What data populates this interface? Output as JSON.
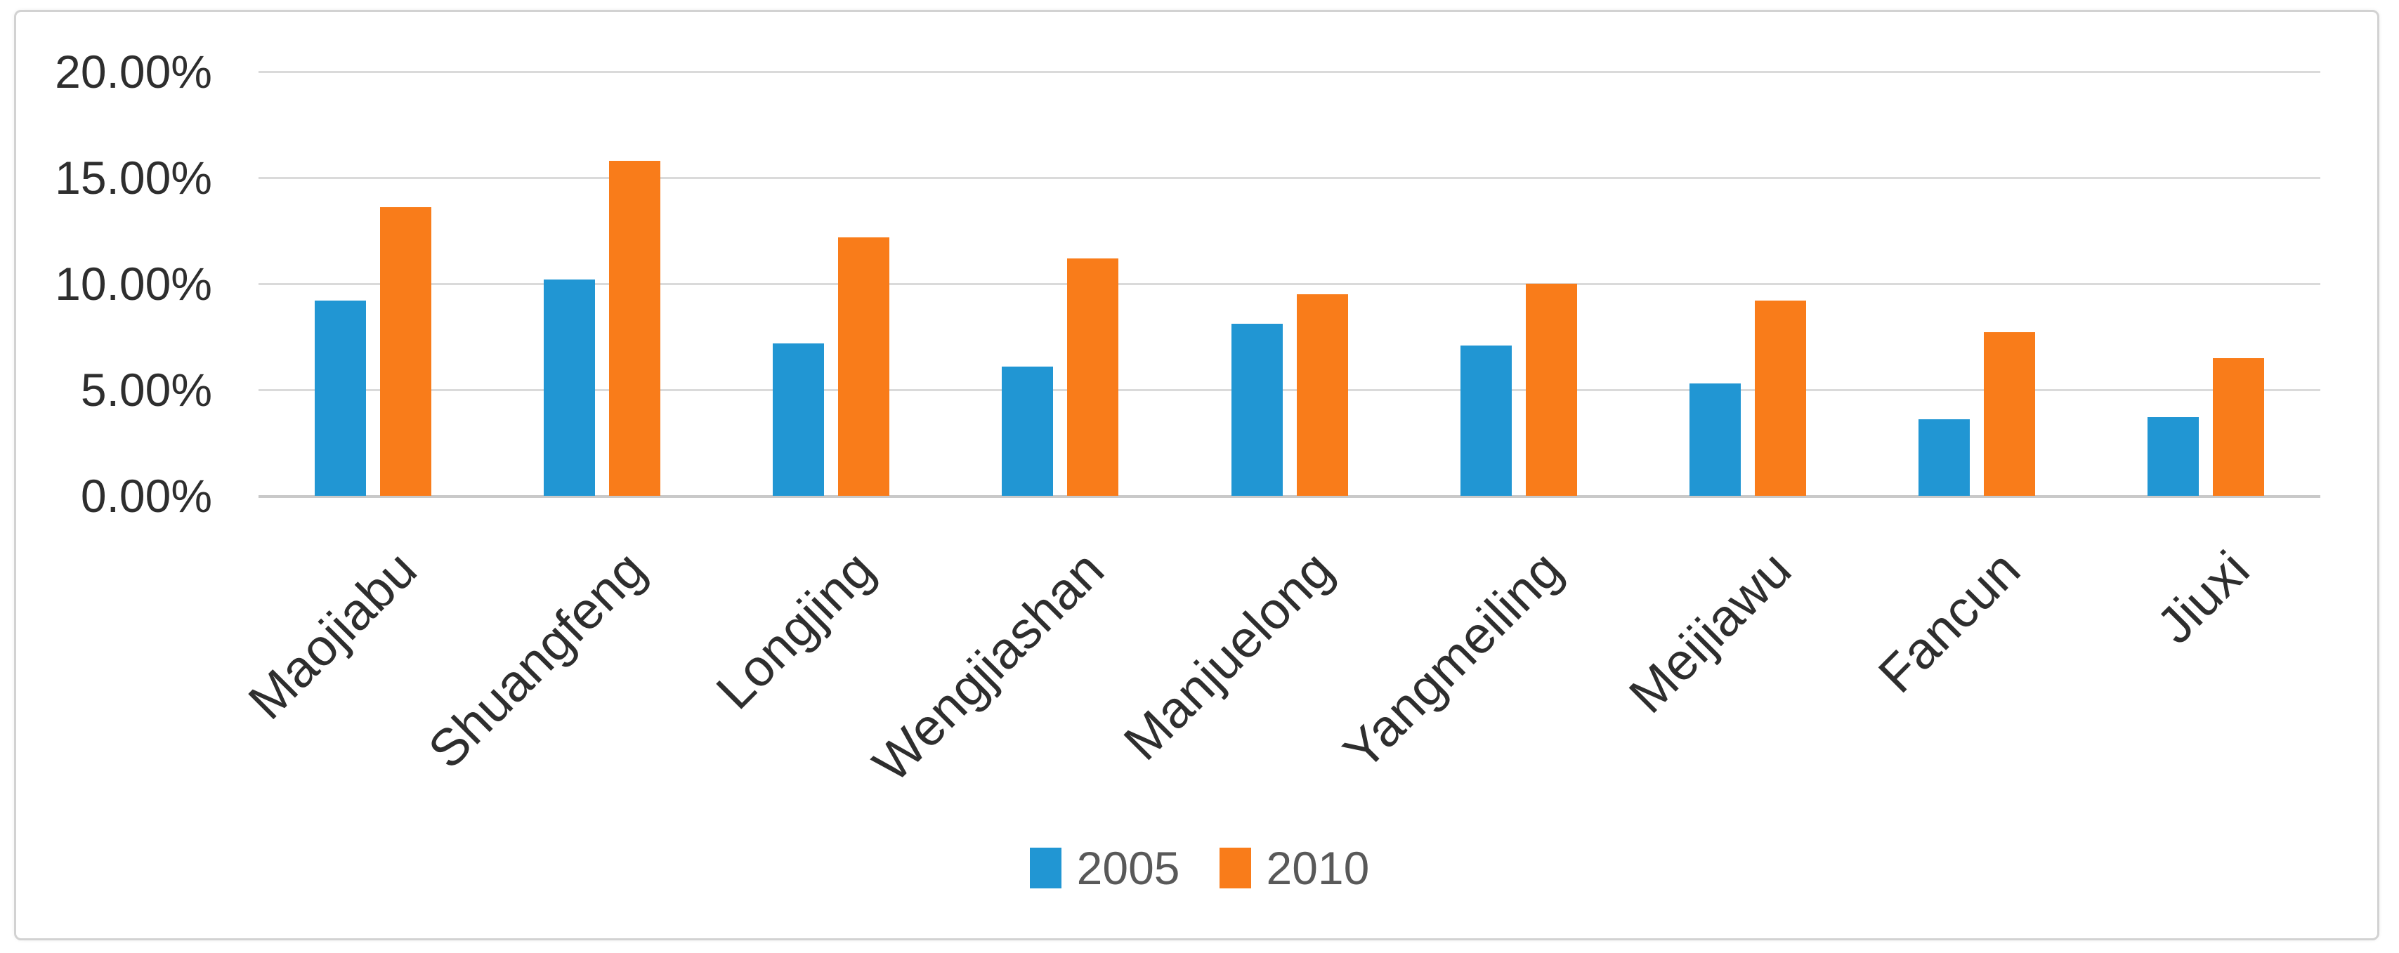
{
  "chart_data": {
    "type": "bar",
    "title": "",
    "xlabel": "",
    "ylabel": "",
    "categories": [
      "Maojiabu",
      "Shuangfeng",
      "Longjing",
      "Wengjiashan",
      "Manjuelong",
      "Yangmeiling",
      "Meijiawu",
      "Fancun",
      "Jiuxi"
    ],
    "series": [
      {
        "name": "2005",
        "color": "#2196d3",
        "values": [
          9.2,
          10.2,
          7.2,
          6.1,
          8.1,
          7.1,
          5.3,
          3.6,
          3.7
        ]
      },
      {
        "name": "2010",
        "color": "#f97c1a",
        "values": [
          13.6,
          15.8,
          12.2,
          11.2,
          9.5,
          10.0,
          9.2,
          7.7,
          6.5
        ]
      }
    ],
    "y_axis": {
      "min": 0,
      "max": 20,
      "tick_values": [
        20,
        15,
        10,
        5,
        0
      ],
      "tick_labels": [
        "20.00%",
        "15.00%",
        "10.00%",
        "5.00%",
        "0.00%"
      ]
    },
    "legend": {
      "position": "bottom",
      "entries": [
        "2005",
        "2010"
      ]
    },
    "grid": true
  },
  "colors": {
    "series_2005": "#2196d3",
    "series_2010": "#f97c1a",
    "gridline": "#dadada",
    "axis_line": "#c9c9c9",
    "frame_border": "#d2d2d2",
    "tick_text": "#2e2e2e",
    "legend_text": "#595959",
    "background": "#ffffff"
  }
}
